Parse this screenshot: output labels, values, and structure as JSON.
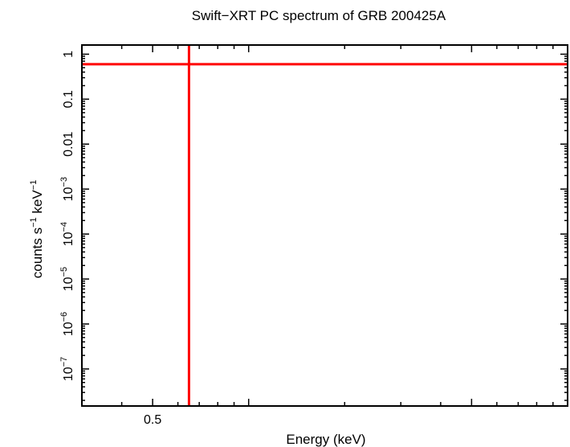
{
  "chart_data": {
    "type": "scatter",
    "title": "Swift−XRT PC spectrum of GRB 200425A",
    "xlabel": "Energy (keV)",
    "ylabel_base": "counts s",
    "ylabel_mid": " keV",
    "ylabel_sup": "−1",
    "xscale": "log",
    "yscale": "log",
    "xlim": [
      0.3,
      10
    ],
    "ylim": [
      1.5e-08,
      1.6
    ],
    "x_ticks": [
      {
        "value": 0.5,
        "label": "0.5"
      }
    ],
    "y_ticks": [
      {
        "value": 1,
        "base": "1",
        "exp": ""
      },
      {
        "value": 0.1,
        "base": "0.1",
        "exp": ""
      },
      {
        "value": 0.01,
        "base": "0.01",
        "exp": ""
      },
      {
        "value": 0.001,
        "base": "10",
        "exp": "−3"
      },
      {
        "value": 0.0001,
        "base": "10",
        "exp": "−4"
      },
      {
        "value": 1e-05,
        "base": "10",
        "exp": "−5"
      },
      {
        "value": 1e-06,
        "base": "10",
        "exp": "−6"
      },
      {
        "value": 1e-07,
        "base": "10",
        "exp": "−7"
      }
    ],
    "series": [
      {
        "points": [
          {
            "x": 0.65,
            "y": 0.6,
            "xerr": [
              0.3,
              10
            ],
            "yerr": [
              1.5e-08,
              1.6
            ]
          }
        ]
      }
    ],
    "colors": {
      "data": "#ff0000",
      "axis": "#000000"
    },
    "grid": false
  }
}
